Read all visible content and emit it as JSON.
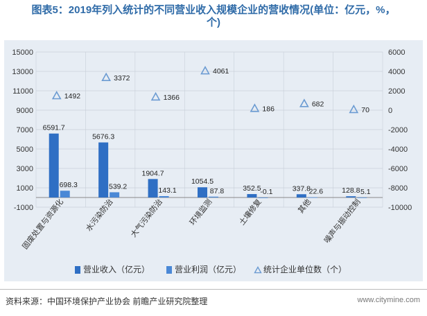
{
  "title_line1": "图表5：2019年列入统计的不同营业收入规模企业的营收情况(单位：亿元，%，",
  "title_line2": "个)",
  "source": "资料来源：中国环境保护产业协会 前瞻产业研究院整理",
  "site": "www.citymine.com",
  "colors": {
    "revenue": "#2f6fc4",
    "profit": "#4a88d6",
    "count": "#6b9bd2"
  },
  "chart_data": {
    "type": "bar",
    "categories": [
      "固废处置与资源化",
      "水污染防治",
      "大气污染防治",
      "环境监测",
      "土壤修复",
      "其他",
      "噪声与振动控制"
    ],
    "y_left": {
      "min": -1000,
      "max": 15000,
      "ticks": [
        -1000,
        1000,
        3000,
        5000,
        7000,
        9000,
        11000,
        13000,
        15000
      ]
    },
    "y_right": {
      "min": -10000,
      "max": 6000,
      "ticks": [
        -10000,
        -8000,
        -6000,
        -4000,
        -2000,
        0,
        2000,
        4000,
        6000
      ]
    },
    "series": [
      {
        "name": "营业收入（亿元）",
        "axis": "left",
        "kind": "bar",
        "values": [
          6591.7,
          5676.3,
          1904.7,
          1054.5,
          352.5,
          337.8,
          128.8
        ],
        "labels": [
          "6591.7",
          "5676.3",
          "1904.7",
          "1054.5",
          "352.5",
          "337.8",
          "128.8"
        ]
      },
      {
        "name": "营业利润（亿元）",
        "axis": "left",
        "kind": "bar",
        "values": [
          698.3,
          539.2,
          143.1,
          87.8,
          -0.1,
          22.6,
          5.1
        ],
        "labels": [
          "698.3",
          "539.2",
          "143.1",
          "87.8",
          "-0.1",
          "22.6",
          "5.1"
        ]
      },
      {
        "name": "统计企业单位数（个）",
        "axis": "right",
        "kind": "marker",
        "values": [
          1492,
          3372,
          1366,
          4061,
          186,
          682,
          70
        ],
        "labels": [
          "1492",
          "3372",
          "1366",
          "4061",
          "186",
          "682",
          "70"
        ]
      }
    ],
    "legend_position": "bottom",
    "grid": true
  }
}
